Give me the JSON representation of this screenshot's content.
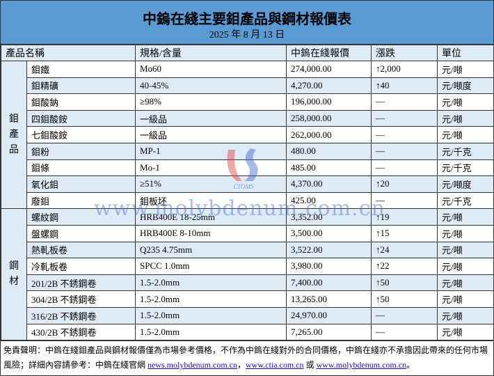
{
  "title": "中鎢在綫主要鉬產品與鋼材報價表",
  "date": "2025 年 8 月 13 日",
  "headers": [
    "產品名稱",
    "規格/含量",
    "中鎢在綫報價",
    "漲跌",
    "單位"
  ],
  "groups": {
    "molybdenum": "鉬\n產\n品",
    "steel": "鋼\n材"
  },
  "rows": [
    {
      "name": "鉬鐵",
      "spec": "Mo60",
      "price": "274,000.00",
      "change": "2,000",
      "dir": "up",
      "unit": "元/噸"
    },
    {
      "name": "鉬精礦",
      "spec": "40-45%",
      "price": "4,270.00",
      "change": "40",
      "dir": "up",
      "unit": "元/噸度"
    },
    {
      "name": "鉬酸鈉",
      "spec": "≥98%",
      "price": "196,000.00",
      "change": "—",
      "dir": "flat",
      "unit": "元/噸"
    },
    {
      "name": "四鉬酸銨",
      "spec": "一級品",
      "price": "258,000.00",
      "change": "—",
      "dir": "flat",
      "unit": "元/噸"
    },
    {
      "name": "七鉬酸銨",
      "spec": "一級品",
      "price": "262,000.00",
      "change": "—",
      "dir": "flat",
      "unit": "元/噸"
    },
    {
      "name": "鉬粉",
      "spec": "MP-1",
      "price": "480.00",
      "change": "—",
      "dir": "flat",
      "unit": "元/千克"
    },
    {
      "name": "鉬條",
      "spec": "Mo-1",
      "price": "485.00",
      "change": "—",
      "dir": "flat",
      "unit": "元/千克"
    },
    {
      "name": "氧化鉬",
      "spec": "≥51%",
      "price": "4,370.00",
      "change": "20",
      "dir": "up",
      "unit": "元/噸度"
    },
    {
      "name": "廢鉬",
      "spec": "鉬板坯",
      "price": "425.00",
      "change": "—",
      "dir": "flat",
      "unit": "元/千克"
    },
    {
      "name": "螺紋鋼",
      "spec": "HRB400E 18-25mm",
      "price": "3,352.00",
      "change": "19",
      "dir": "up",
      "unit": "元/噸"
    },
    {
      "name": "盤螺鋼",
      "spec": "HRB400E 8-10mm",
      "price": "3,500.00",
      "change": "15",
      "dir": "up",
      "unit": "元/噸"
    },
    {
      "name": "熱軋板卷",
      "spec": "Q235 4.75mm",
      "price": "3,522.00",
      "change": "24",
      "dir": "up",
      "unit": "元/噸"
    },
    {
      "name": "冷軋板卷",
      "spec": "SPCC 1.0mm",
      "price": "3,980.00",
      "change": "22",
      "dir": "up",
      "unit": "元/噸"
    },
    {
      "name": "201/2B 不銹鋼卷",
      "spec": "1.5-2.0mm",
      "price": "7,400.00",
      "change": "50",
      "dir": "up",
      "unit": "元/噸"
    },
    {
      "name": "304/2B 不銹鋼卷",
      "spec": "1.5-2.0mm",
      "price": "13,265.00",
      "change": "50",
      "dir": "up",
      "unit": "元/噸"
    },
    {
      "name": "316/2B 不銹鋼卷",
      "spec": "1.5-2.0mm",
      "price": "24,970.00",
      "change": "—",
      "dir": "flat",
      "unit": "元/噸"
    },
    {
      "name": "430/2B 不銹鋼卷",
      "spec": "1.5-2.0mm",
      "price": "7,265.00",
      "change": "—",
      "dir": "flat",
      "unit": "元/噸"
    }
  ],
  "footer": {
    "text1": "免責聲明：中鎢在綫鉬產品與鋼材報價僅為市場參考價格，不作為中鎢在綫對外的合同價格，中鎢在綫亦不承擔因此帶來的任何市場風險；詳細內容請參考：中鎢在綫官網 ",
    "link1": "news.molybdenum.com.cn",
    "sep1": "，",
    "link2": "www.ctia.com.cn",
    "sep2": " 或 ",
    "link3": "www.molybdenum.com.cn",
    "end": "。"
  },
  "watermark": "www.molybdenum.com.cn",
  "logo_text": "CTOMS",
  "colors": {
    "header": "#5b9bd5",
    "alt_row": "#deebf7"
  }
}
